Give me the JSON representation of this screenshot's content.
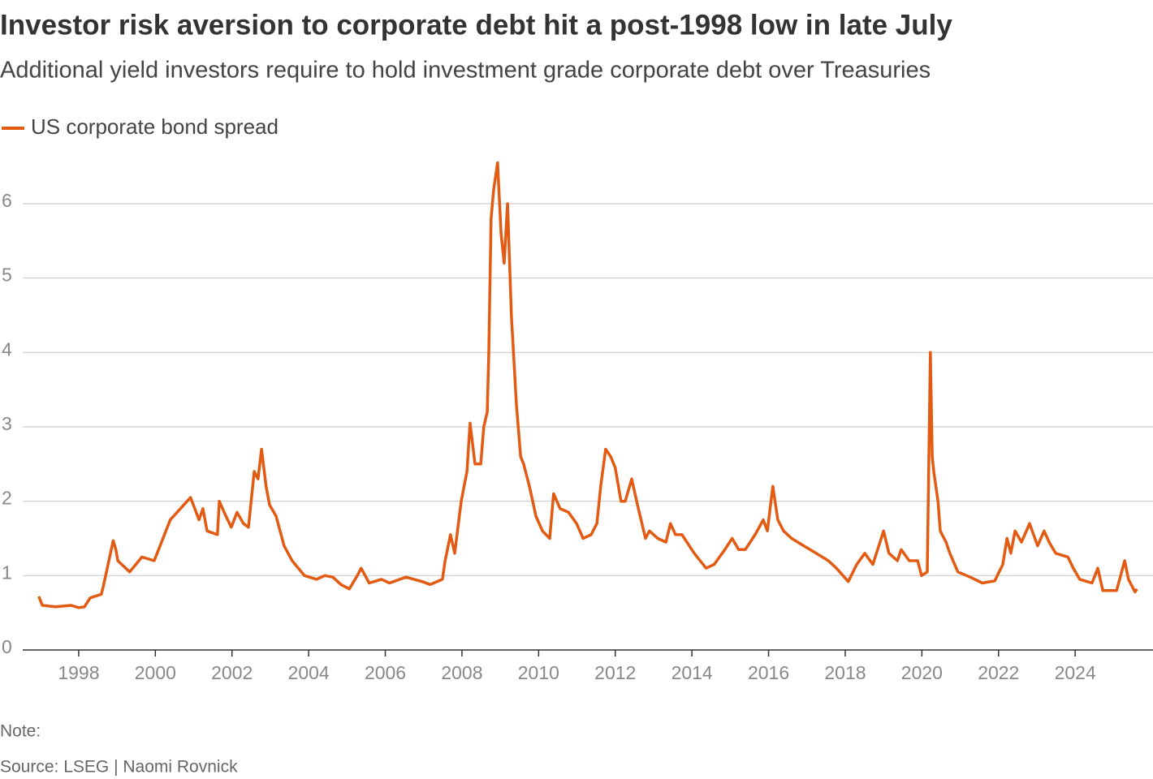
{
  "chart_data": {
    "type": "line",
    "title": "Investor risk aversion to corporate debt hit a post-1998 low in late July",
    "subtitle": "Additional yield investors require to hold investment grade corporate debt over Treasuries",
    "note": "Note:",
    "source": "Source: LSEG | Naomi Rovnick",
    "x": [
      1996.96,
      1997.05,
      1997.4,
      1997.8,
      1998.0,
      1998.15,
      1998.3,
      1998.59,
      1998.64,
      1998.81,
      1998.9,
      1998.97,
      1999.02,
      1999.33,
      1999.65,
      1999.97,
      2000.39,
      2000.92,
      2001.14,
      2001.24,
      2001.35,
      2001.62,
      2001.67,
      2001.84,
      2001.98,
      2002.13,
      2002.3,
      2002.43,
      2002.58,
      2002.68,
      2002.77,
      2002.89,
      2002.98,
      2003.15,
      2003.36,
      2003.57,
      2003.89,
      2004.21,
      2004.42,
      2004.63,
      2004.84,
      2005.06,
      2005.27,
      2005.37,
      2005.58,
      2005.9,
      2006.11,
      2006.54,
      2006.96,
      2007.17,
      2007.49,
      2007.56,
      2007.7,
      2007.81,
      2007.98,
      2008.13,
      2008.21,
      2008.34,
      2008.49,
      2008.57,
      2008.66,
      2008.7,
      2008.76,
      2008.83,
      2008.93,
      2009.02,
      2009.1,
      2009.19,
      2009.29,
      2009.42,
      2009.53,
      2009.61,
      2009.76,
      2009.93,
      2010.1,
      2010.29,
      2010.39,
      2010.56,
      2010.78,
      2010.99,
      2011.16,
      2011.37,
      2011.52,
      2011.62,
      2011.75,
      2011.88,
      2012.0,
      2012.15,
      2012.26,
      2012.43,
      2012.58,
      2012.79,
      2012.89,
      2013.11,
      2013.32,
      2013.44,
      2013.57,
      2013.74,
      2014.06,
      2014.37,
      2014.58,
      2014.86,
      2015.05,
      2015.22,
      2015.39,
      2015.65,
      2015.86,
      2015.97,
      2016.11,
      2016.24,
      2016.39,
      2016.6,
      2016.92,
      2017.24,
      2017.56,
      2017.77,
      2018.08,
      2018.3,
      2018.51,
      2018.72,
      2019.0,
      2019.14,
      2019.36,
      2019.46,
      2019.67,
      2019.89,
      2019.99,
      2020.14,
      2020.22,
      2020.27,
      2020.31,
      2020.42,
      2020.48,
      2020.63,
      2020.73,
      2020.94,
      2021.26,
      2021.58,
      2021.9,
      2022.11,
      2022.22,
      2022.32,
      2022.43,
      2022.6,
      2022.81,
      2023.02,
      2023.19,
      2023.32,
      2023.49,
      2023.81,
      2023.95,
      2024.12,
      2024.44,
      2024.59,
      2024.72,
      2025.08,
      2025.29,
      2025.39,
      2025.56,
      2025.61
    ],
    "series": [
      {
        "name": "US corporate bond spread",
        "color": "#e35b12",
        "values": [
          0.72,
          0.6,
          0.58,
          0.6,
          0.57,
          0.58,
          0.7,
          0.75,
          0.85,
          1.25,
          1.47,
          1.35,
          1.2,
          1.05,
          1.25,
          1.2,
          1.75,
          2.05,
          1.75,
          1.9,
          1.6,
          1.55,
          2.0,
          1.8,
          1.65,
          1.85,
          1.7,
          1.65,
          2.4,
          2.3,
          2.7,
          2.2,
          1.95,
          1.8,
          1.4,
          1.2,
          1.0,
          0.95,
          1.0,
          0.98,
          0.88,
          0.82,
          1.0,
          1.1,
          0.9,
          0.95,
          0.9,
          0.98,
          0.92,
          0.88,
          0.95,
          1.2,
          1.55,
          1.3,
          2.0,
          2.4,
          3.05,
          2.5,
          2.5,
          3.0,
          3.2,
          4.0,
          5.8,
          6.2,
          6.55,
          5.6,
          5.2,
          6.0,
          4.5,
          3.3,
          2.6,
          2.5,
          2.2,
          1.8,
          1.6,
          1.5,
          2.1,
          1.9,
          1.85,
          1.7,
          1.5,
          1.55,
          1.7,
          2.2,
          2.7,
          2.6,
          2.45,
          2.0,
          2.0,
          2.3,
          1.95,
          1.5,
          1.6,
          1.5,
          1.45,
          1.7,
          1.55,
          1.55,
          1.3,
          1.1,
          1.15,
          1.35,
          1.5,
          1.35,
          1.35,
          1.55,
          1.75,
          1.6,
          2.2,
          1.75,
          1.6,
          1.5,
          1.4,
          1.3,
          1.2,
          1.1,
          0.92,
          1.15,
          1.3,
          1.15,
          1.6,
          1.3,
          1.2,
          1.35,
          1.2,
          1.2,
          1.0,
          1.05,
          4.0,
          2.6,
          2.4,
          2.0,
          1.6,
          1.45,
          1.3,
          1.05,
          0.98,
          0.9,
          0.93,
          1.15,
          1.5,
          1.3,
          1.6,
          1.45,
          1.7,
          1.4,
          1.6,
          1.45,
          1.3,
          1.25,
          1.1,
          0.95,
          0.9,
          1.1,
          0.8,
          0.8,
          1.2,
          0.95,
          0.78,
          0.82
        ]
      }
    ],
    "xlim": [
      1996.54,
      2026.03
    ],
    "xticks": [
      1998,
      2000,
      2002,
      2004,
      2006,
      2008,
      2010,
      2012,
      2014,
      2016,
      2018,
      2020,
      2022,
      2024
    ],
    "ylim": [
      0,
      6.6
    ],
    "yticks": [
      0,
      1,
      2,
      3,
      4,
      5,
      6
    ],
    "grid": true
  }
}
